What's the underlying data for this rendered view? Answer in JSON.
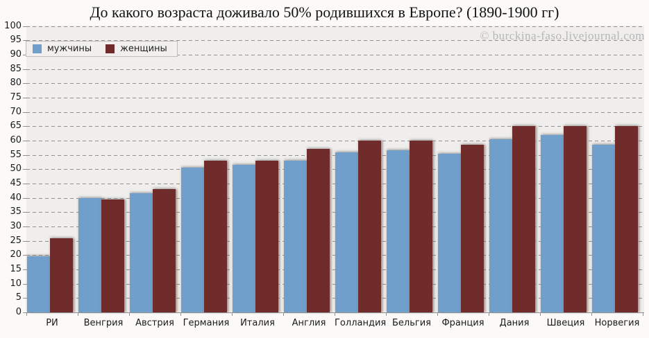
{
  "title": "До какого возраста доживало 50% родившихся в Европе? (1890-1900 гг)",
  "watermark": "© burckina-faso.livejournal.com",
  "colors": {
    "men_bar": "#6f9fca",
    "women_bar": "#702c2a",
    "plot_background": "#efeeec",
    "page_background": "#fbfaf8",
    "gridline": "#8f8f8f",
    "watermark_text": "#b6b6b6"
  },
  "chart_data": {
    "type": "bar",
    "title": "До какого возраста доживало 50% родившихся в Европе? (1890-1900 гг)",
    "categories": [
      "РИ",
      "Венгрия",
      "Австрия",
      "Германия",
      "Италия",
      "Англия",
      "Голландия",
      "Бельгия",
      "Франция",
      "Дания",
      "Швеция",
      "Норвегия"
    ],
    "series": [
      {
        "name": "мужчины",
        "color": "#6f9fca",
        "values": [
          19.5,
          40,
          41.5,
          50.5,
          51.5,
          53,
          56,
          56.5,
          55.5,
          60.5,
          62,
          58.5
        ]
      },
      {
        "name": "женщины",
        "color": "#702c2a",
        "values": [
          26,
          39.5,
          43,
          53,
          53,
          57,
          60,
          60,
          58.5,
          65,
          65,
          65
        ]
      }
    ],
    "xlabel": "",
    "ylabel": "",
    "ylim": [
      0,
      100
    ],
    "ytick_step": 5,
    "grid": "horizontal-dashed",
    "legend_position": "top-left"
  }
}
